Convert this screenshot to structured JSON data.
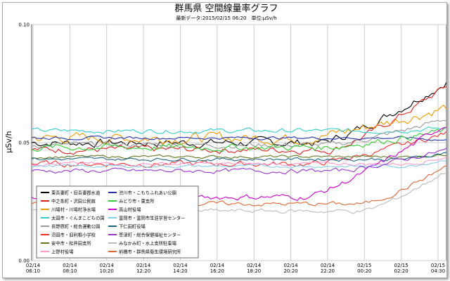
{
  "chart_data": {
    "type": "line",
    "title": "群馬県 空間線量率グラフ",
    "subtitle": "最新データ:2015/02/15 06:20　単位:μSv/h",
    "ylabel": "μSv/h",
    "ylim": [
      0,
      0.1
    ],
    "yticks": [
      "0.00",
      "0.05",
      "0.10"
    ],
    "grid": true,
    "legend_position": "bottom-left",
    "xtick_labels": [
      [
        "02/14",
        "06:10"
      ],
      [
        "02/14",
        "08:10"
      ],
      [
        "02/14",
        "10:20"
      ],
      [
        "02/14",
        "12:20"
      ],
      [
        "02/14",
        "14:20"
      ],
      [
        "02/14",
        "16:20"
      ],
      [
        "02/14",
        "18:20"
      ],
      [
        "02/14",
        "20:20"
      ],
      [
        "02/14",
        "22:20"
      ],
      [
        "02/15",
        "00:20"
      ],
      [
        "02/15",
        "02:20"
      ],
      [
        "02/15",
        "04:30"
      ]
    ],
    "series": [
      {
        "name": "東吾妻町・旧吾妻郡水道",
        "color": "#000000",
        "start": 0.05,
        "end": 0.076,
        "rise_start": 0.7,
        "noise": 0.0015
      },
      {
        "name": "中之条町・沢田公民館",
        "color": "#dd2020",
        "start": 0.047,
        "end": 0.074,
        "rise_start": 0.72,
        "noise": 0.0012
      },
      {
        "name": "川場村・川場村浄水場",
        "color": "#ee9900",
        "start": 0.052,
        "end": 0.065,
        "rise_start": 0.66,
        "noise": 0.0018
      },
      {
        "name": "太田市・ぐんまこどもの国",
        "color": "#33cccc",
        "start": 0.055,
        "end": 0.056,
        "rise_start": 0.8,
        "noise": 0.0008
      },
      {
        "name": "長野原町・総合運動公園",
        "color": "#999999",
        "start": 0.049,
        "end": 0.06,
        "rise_start": 0.72,
        "noise": 0.001
      },
      {
        "name": "沼田市・旧利根小学校",
        "color": "#ee3333",
        "start": 0.041,
        "end": 0.054,
        "rise_start": 0.68,
        "noise": 0.001
      },
      {
        "name": "安中市・松井田支所",
        "color": "#667722",
        "start": 0.044,
        "end": 0.045,
        "rise_start": 0.9,
        "noise": 0.0005
      },
      {
        "name": "上野村役場",
        "color": "#ff99cc",
        "start": 0.041,
        "end": 0.044,
        "rise_start": 0.9,
        "noise": 0.0006
      },
      {
        "name": "渋川市・こもちふれあい公園",
        "color": "#2233aa",
        "start": 0.052,
        "end": 0.051,
        "rise_start": 0.9,
        "noise": 0.0005
      },
      {
        "name": "みどり市・東支所",
        "color": "#33cc33",
        "start": 0.048,
        "end": 0.055,
        "rise_start": 0.7,
        "noise": 0.0012
      },
      {
        "name": "高山村役場",
        "color": "#cc00cc",
        "start": 0.027,
        "end": 0.058,
        "rise_start": 0.66,
        "noise": 0.001
      },
      {
        "name": "富岡市・富岡市生涯学習センター",
        "color": "#88ccee",
        "start": 0.04,
        "end": 0.043,
        "rise_start": 0.9,
        "noise": 0.0005
      },
      {
        "name": "下仁田町役場",
        "color": "#226688",
        "start": 0.043,
        "end": 0.046,
        "rise_start": 0.9,
        "noise": 0.0006
      },
      {
        "name": "草津町・総合保健福祉センター",
        "color": "#9933cc",
        "start": 0.038,
        "end": 0.047,
        "rise_start": 0.74,
        "noise": 0.0008
      },
      {
        "name": "みなかみ町・水上支所駐車場",
        "color": "#bbbbbb",
        "start": 0.021,
        "end": 0.038,
        "rise_start": 0.8,
        "noise": 0.0008
      },
      {
        "name": "前橋市・群馬県衛生環境研究所",
        "color": "#dd6633",
        "start": 0.024,
        "end": 0.04,
        "rise_start": 0.8,
        "noise": 0.0008
      }
    ]
  }
}
